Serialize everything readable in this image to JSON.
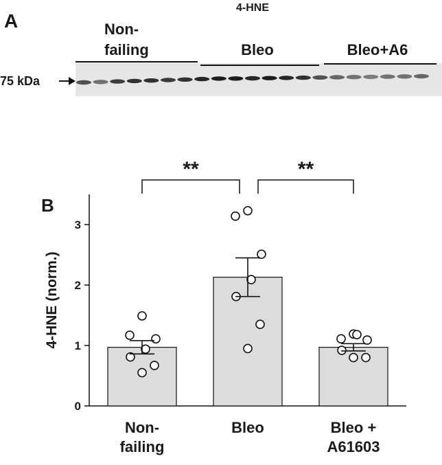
{
  "panel_labels": [
    "A",
    "B"
  ],
  "blot": {
    "title": "4-HNE",
    "marker": "75 kDa",
    "groups": [
      [
        "Non-",
        "failing"
      ],
      [
        "Bleo"
      ],
      [
        "Bleo+A6"
      ]
    ]
  },
  "chart_data": {
    "type": "bar",
    "y_label": "4-HNE (norm.)",
    "categories": [
      [
        "Non-",
        "failing"
      ],
      [
        "Bleo"
      ],
      [
        "Bleo +",
        "A61603"
      ]
    ],
    "values": [
      0.97,
      2.13,
      0.97
    ],
    "errors": [
      0.11,
      0.32,
      0.06
    ],
    "points": [
      [
        1.49,
        1.17,
        1.11,
        0.94,
        0.81,
        0.67,
        0.55
      ],
      [
        3.23,
        3.14,
        2.51,
        2.09,
        1.81,
        1.35,
        0.95
      ],
      [
        1.19,
        1.11,
        1.09,
        1.18,
        0.92,
        0.8,
        0.8
      ]
    ],
    "color": "#dcdcdc",
    "ylim": [
      0,
      3.5
    ],
    "yticks": [
      0,
      1,
      2,
      3
    ],
    "significance": [
      {
        "from": 0,
        "to": 1,
        "label": "**"
      },
      {
        "from": 1,
        "to": 2,
        "label": "**"
      }
    ]
  }
}
